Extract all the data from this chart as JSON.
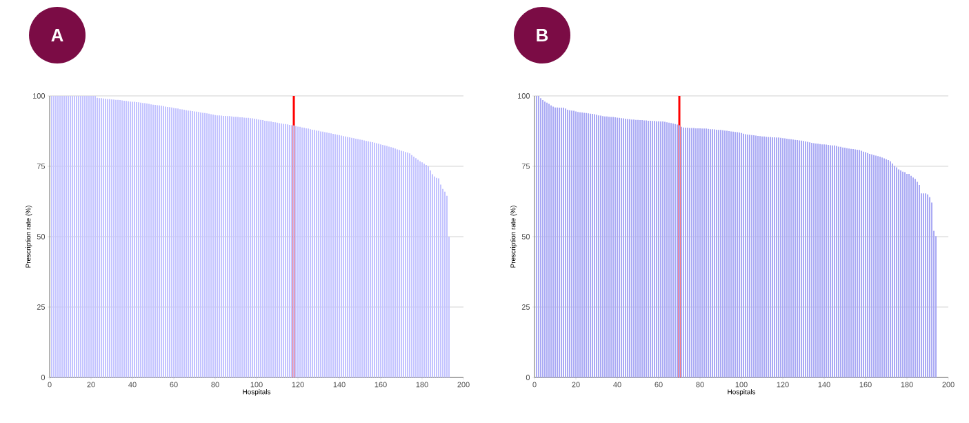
{
  "chart_data": [
    {
      "type": "bar",
      "title": "A",
      "xlabel": "Hospitals",
      "ylabel": "Prescription rate (%)",
      "color": "#c2c2ff",
      "x": [
        1,
        2,
        3,
        4,
        5,
        6,
        7,
        8,
        9,
        10,
        11,
        12,
        13,
        14,
        15,
        16,
        17,
        18,
        19,
        20,
        21,
        22,
        23,
        24,
        25,
        26,
        27,
        28,
        29,
        30,
        31,
        32,
        33,
        34,
        35,
        36,
        37,
        38,
        39,
        40,
        41,
        42,
        43,
        44,
        45,
        46,
        47,
        48,
        49,
        50,
        51,
        52,
        53,
        54,
        55,
        56,
        57,
        58,
        59,
        60,
        61,
        62,
        63,
        64,
        65,
        66,
        67,
        68,
        69,
        70,
        71,
        72,
        73,
        74,
        75,
        76,
        77,
        78,
        79,
        80,
        81,
        82,
        83,
        84,
        85,
        86,
        87,
        88,
        89,
        90,
        91,
        92,
        93,
        94,
        95,
        96,
        97,
        98,
        99,
        100,
        101,
        102,
        103,
        104,
        105,
        106,
        107,
        108,
        109,
        110,
        111,
        112,
        113,
        114,
        115,
        116,
        117,
        118,
        119,
        120,
        121,
        122,
        123,
        124,
        125,
        126,
        127,
        128,
        129,
        130,
        131,
        132,
        133,
        134,
        135,
        136,
        137,
        138,
        139,
        140,
        141,
        142,
        143,
        144,
        145,
        146,
        147,
        148,
        149,
        150,
        151,
        152,
        153,
        154,
        155,
        156,
        157,
        158,
        159,
        160,
        161,
        162,
        163,
        164,
        165,
        166,
        167,
        168,
        169,
        170,
        171,
        172,
        173,
        174,
        175,
        176,
        177,
        178,
        179,
        180,
        181,
        182,
        183,
        184,
        185,
        186,
        187,
        188,
        189,
        190,
        191,
        192,
        193
      ],
      "values": [
        100,
        100,
        100,
        100,
        100,
        100,
        100,
        100,
        100,
        100,
        100,
        100,
        100,
        100,
        100,
        100,
        100,
        100,
        100,
        100,
        100,
        100,
        99.3,
        99.2,
        99.2,
        99.1,
        99.0,
        98.9,
        98.9,
        98.8,
        98.7,
        98.6,
        98.6,
        98.5,
        98.4,
        98.3,
        98.2,
        98.1,
        98.0,
        97.9,
        97.9,
        97.8,
        97.7,
        97.6,
        97.5,
        97.4,
        97.3,
        97.2,
        97.0,
        96.9,
        96.8,
        96.7,
        96.6,
        96.5,
        96.4,
        96.2,
        96.1,
        96.0,
        95.9,
        95.7,
        95.6,
        95.5,
        95.3,
        95.2,
        95.1,
        94.9,
        94.8,
        94.7,
        94.6,
        94.5,
        94.4,
        94.3,
        94.1,
        94.0,
        93.9,
        93.8,
        93.7,
        93.5,
        93.4,
        93.2,
        93.1,
        93.1,
        93.0,
        92.9,
        92.9,
        92.8,
        92.8,
        92.7,
        92.6,
        92.6,
        92.5,
        92.4,
        92.4,
        92.3,
        92.2,
        92.2,
        92.1,
        92.0,
        91.9,
        91.8,
        91.6,
        91.5,
        91.4,
        91.2,
        91.1,
        91.0,
        90.9,
        90.7,
        90.6,
        90.5,
        90.3,
        90.2,
        90.1,
        90.0,
        89.9,
        89.7,
        89.6,
        89.5,
        89.3,
        89.1,
        89.0,
        88.8,
        88.7,
        88.5,
        88.4,
        88.2,
        88.0,
        87.9,
        87.7,
        87.6,
        87.4,
        87.3,
        87.1,
        87.0,
        86.8,
        86.7,
        86.5,
        86.4,
        86.2,
        86.1,
        85.9,
        85.7,
        85.6,
        85.4,
        85.3,
        85.1,
        85.0,
        84.8,
        84.7,
        84.5,
        84.4,
        84.2,
        84.0,
        83.9,
        83.7,
        83.6,
        83.4,
        83.2,
        83.0,
        82.8,
        82.6,
        82.4,
        82.2,
        82.0,
        81.8,
        81.6,
        81.3,
        81.0,
        80.8,
        80.5,
        80.3,
        80.1,
        79.9,
        79.6,
        79.0,
        78.4,
        77.9,
        77.3,
        76.8,
        76.4,
        75.9,
        75.5,
        75.0,
        73.5,
        72.2,
        71.4,
        70.9,
        70.7,
        68.5,
        67.0,
        66.0,
        64.5,
        50
      ],
      "xlim": [
        0,
        200
      ],
      "xticks": [
        0,
        20,
        40,
        60,
        80,
        100,
        120,
        140,
        160,
        180,
        200
      ],
      "ylim": [
        0,
        100
      ],
      "yticks": [
        0,
        25,
        50,
        75,
        100
      ],
      "grid": "y",
      "ref_lines": [
        {
          "axis": "x",
          "value": 118,
          "color": "#ff0000"
        }
      ]
    },
    {
      "type": "bar",
      "title": "B",
      "xlabel": "Hospitals",
      "ylabel": "Prescription rate (%)",
      "color": "#a8a8f4",
      "x": [
        1,
        2,
        3,
        4,
        5,
        6,
        7,
        8,
        9,
        10,
        11,
        12,
        13,
        14,
        15,
        16,
        17,
        18,
        19,
        20,
        21,
        22,
        23,
        24,
        25,
        26,
        27,
        28,
        29,
        30,
        31,
        32,
        33,
        34,
        35,
        36,
        37,
        38,
        39,
        40,
        41,
        42,
        43,
        44,
        45,
        46,
        47,
        48,
        49,
        50,
        51,
        52,
        53,
        54,
        55,
        56,
        57,
        58,
        59,
        60,
        61,
        62,
        63,
        64,
        65,
        66,
        67,
        68,
        69,
        70,
        71,
        72,
        73,
        74,
        75,
        76,
        77,
        78,
        79,
        80,
        81,
        82,
        83,
        84,
        85,
        86,
        87,
        88,
        89,
        90,
        91,
        92,
        93,
        94,
        95,
        96,
        97,
        98,
        99,
        100,
        101,
        102,
        103,
        104,
        105,
        106,
        107,
        108,
        109,
        110,
        111,
        112,
        113,
        114,
        115,
        116,
        117,
        118,
        119,
        120,
        121,
        122,
        123,
        124,
        125,
        126,
        127,
        128,
        129,
        130,
        131,
        132,
        133,
        134,
        135,
        136,
        137,
        138,
        139,
        140,
        141,
        142,
        143,
        144,
        145,
        146,
        147,
        148,
        149,
        150,
        151,
        152,
        153,
        154,
        155,
        156,
        157,
        158,
        159,
        160,
        161,
        162,
        163,
        164,
        165,
        166,
        167,
        168,
        169,
        170,
        171,
        172,
        173,
        174,
        175,
        176,
        177,
        178,
        179,
        180,
        181,
        182,
        183,
        184,
        185,
        186,
        187,
        188,
        189,
        190,
        191,
        192,
        193,
        194
      ],
      "values": [
        100,
        100,
        99.2,
        98.5,
        98.0,
        97.6,
        97.2,
        96.6,
        96.2,
        95.9,
        95.9,
        95.8,
        95.8,
        95.8,
        95.5,
        95.1,
        94.9,
        94.8,
        94.7,
        94.5,
        94.3,
        94.2,
        94.1,
        94.0,
        93.9,
        93.8,
        93.7,
        93.6,
        93.5,
        93.3,
        93.1,
        93.0,
        92.8,
        92.7,
        92.7,
        92.6,
        92.5,
        92.5,
        92.4,
        92.3,
        92.2,
        92.1,
        92.0,
        91.9,
        91.8,
        91.7,
        91.6,
        91.6,
        91.5,
        91.5,
        91.4,
        91.4,
        91.3,
        91.3,
        91.2,
        91.2,
        91.1,
        91.1,
        91.0,
        91.0,
        90.9,
        90.9,
        90.8,
        90.6,
        90.5,
        90.4,
        90.2,
        90.0,
        89.8,
        89.6,
        89.0,
        88.8,
        88.7,
        88.7,
        88.6,
        88.6,
        88.6,
        88.5,
        88.5,
        88.5,
        88.4,
        88.4,
        88.4,
        88.3,
        88.2,
        88.2,
        88.1,
        88.0,
        87.9,
        87.9,
        87.8,
        87.7,
        87.6,
        87.5,
        87.4,
        87.3,
        87.2,
        87.1,
        87.0,
        86.8,
        86.6,
        86.4,
        86.3,
        86.2,
        86.1,
        86.0,
        85.9,
        85.8,
        85.7,
        85.6,
        85.6,
        85.5,
        85.4,
        85.4,
        85.3,
        85.3,
        85.2,
        85.2,
        85.1,
        85.0,
        84.9,
        84.8,
        84.7,
        84.6,
        84.5,
        84.4,
        84.3,
        84.2,
        84.1,
        84.0,
        83.8,
        83.7,
        83.5,
        83.3,
        83.2,
        83.1,
        83.0,
        82.9,
        82.8,
        82.8,
        82.7,
        82.6,
        82.5,
        82.4,
        82.4,
        82.2,
        82.0,
        81.9,
        81.7,
        81.6,
        81.4,
        81.3,
        81.2,
        81.1,
        81.0,
        80.9,
        80.8,
        80.5,
        80.2,
        80.0,
        79.7,
        79.4,
        79.2,
        79.0,
        78.8,
        78.6,
        78.4,
        78.1,
        77.8,
        77.5,
        77.2,
        76.8,
        76.0,
        75.1,
        74.6,
        73.9,
        73.5,
        73.1,
        72.9,
        72.3,
        72.3,
        71.6,
        71.0,
        70.5,
        69.5,
        68.4,
        65.4,
        65.4,
        65.4,
        65.0,
        64.0,
        62.1,
        52.1,
        50.2
      ],
      "xlim": [
        0,
        200
      ],
      "xticks": [
        0,
        20,
        40,
        60,
        80,
        100,
        120,
        140,
        160,
        180,
        200
      ],
      "ylim": [
        0,
        100
      ],
      "yticks": [
        0,
        25,
        50,
        75,
        100
      ],
      "grid": "y",
      "ref_lines": [
        {
          "axis": "x",
          "value": 70,
          "color": "#ff0000"
        }
      ]
    }
  ]
}
